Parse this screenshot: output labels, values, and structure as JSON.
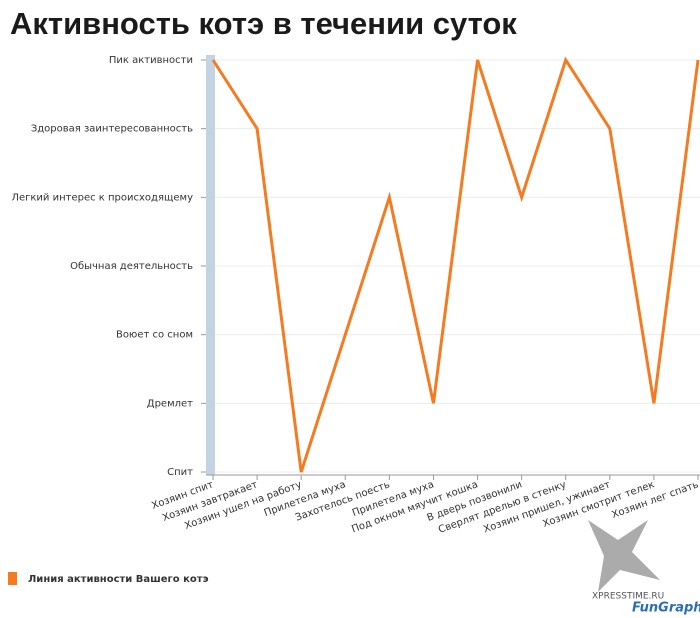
{
  "chart_data": {
    "type": "line",
    "title": "Активность котэ в течении суток",
    "categories": [
      "Хозяин спит",
      "Хозяин завтракает",
      "Хозяин ушел на работу",
      "Прилетела муха",
      "Захотелось поесть",
      "Прилетела муха",
      "Под окном мяучит кошка",
      "В дверь позвонили",
      "Сверлят дрелью в стенку",
      "Хозяин пришел, ужинает",
      "Хозяин смотрит телек",
      "Хозяин лег спать"
    ],
    "series": [
      {
        "name": "Линия активности Вашего котэ",
        "color": "#f47b20",
        "values": [
          6,
          5,
          0,
          2,
          4,
          1,
          6,
          4,
          6,
          5,
          1,
          6
        ]
      }
    ],
    "ylim": [
      0,
      6
    ],
    "yticks": [
      {
        "value": 0,
        "label": "Спит"
      },
      {
        "value": 1,
        "label": "Дремлет"
      },
      {
        "value": 2,
        "label": "Воюет со сном"
      },
      {
        "value": 3,
        "label": "Обычная деятельность"
      },
      {
        "value": 4,
        "label": "Легкий интерес к происходящему"
      },
      {
        "value": 5,
        "label": "Здоровая заинтересованность"
      },
      {
        "value": 6,
        "label": "Пик активности"
      }
    ],
    "grid": true,
    "legend": "bottom-left",
    "annotations": [
      "XPRESSTIME.RU",
      "FunGraph"
    ]
  }
}
